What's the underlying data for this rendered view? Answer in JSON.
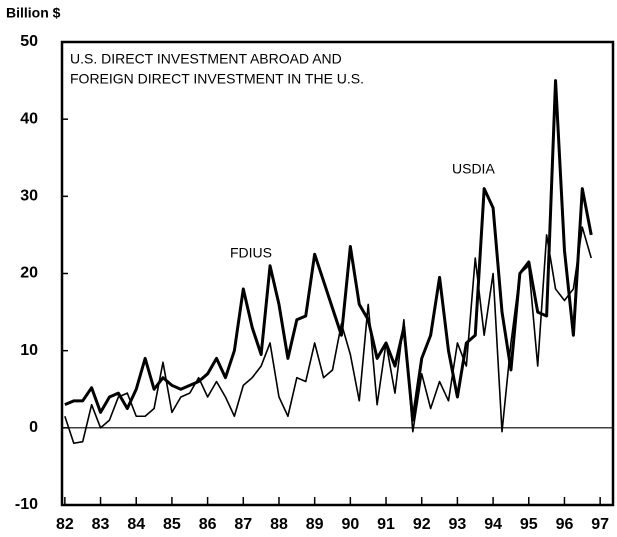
{
  "chart_data": {
    "type": "line",
    "title": [
      "U.S. DIRECT INVESTMENT ABROAD AND",
      "FOREIGN DIRECT INVESTMENT IN THE U.S."
    ],
    "y_label": "Billion $",
    "annotations": [
      "FDIUS",
      "USDIA"
    ],
    "x": [
      1982,
      1982.25,
      1982.5,
      1982.75,
      1983,
      1983.25,
      1983.5,
      1983.75,
      1984,
      1984.25,
      1984.5,
      1984.75,
      1985,
      1985.25,
      1985.5,
      1985.75,
      1986,
      1986.25,
      1986.5,
      1986.75,
      1987,
      1987.25,
      1987.5,
      1987.75,
      1988,
      1988.25,
      1988.5,
      1988.75,
      1989,
      1989.25,
      1989.5,
      1989.75,
      1990,
      1990.25,
      1990.5,
      1990.75,
      1991,
      1991.25,
      1991.5,
      1991.75,
      1992,
      1992.25,
      1992.5,
      1992.75,
      1993,
      1993.25,
      1993.5,
      1993.75,
      1994,
      1994.25,
      1994.5,
      1994.75,
      1995,
      1995.25,
      1995.5,
      1995.75,
      1996,
      1996.25,
      1996.5,
      1996.75
    ],
    "series": [
      {
        "name": "FDIUS",
        "color": "#000000",
        "width": 3,
        "values": [
          3,
          3.5,
          3.5,
          5.2,
          2,
          4,
          4.5,
          2.5,
          5,
          9,
          5,
          6.5,
          5.5,
          5,
          5.5,
          6,
          7,
          9,
          6.5,
          10,
          18,
          13,
          9.5,
          21,
          16,
          9,
          14,
          14.5,
          22.5,
          19,
          15.5,
          12,
          23.5,
          16,
          14,
          9,
          11,
          8,
          13,
          1,
          9,
          12,
          19.5,
          10,
          4,
          11,
          12,
          31,
          28.5,
          15,
          7.5,
          20,
          21.5,
          15,
          14.5,
          45,
          23,
          12,
          31,
          25
        ]
      },
      {
        "name": "USDIA",
        "color": "#000000",
        "width": 1.6,
        "values": [
          1.5,
          -2,
          -1.8,
          3,
          0,
          1,
          4,
          4.5,
          1.5,
          1.5,
          2.5,
          8.5,
          2,
          4,
          4.5,
          6.5,
          4,
          6,
          4,
          1.5,
          5.5,
          6.5,
          8,
          11,
          4,
          1.5,
          6.5,
          6,
          11,
          6.5,
          7.5,
          13.5,
          9.5,
          3.5,
          16,
          3,
          11,
          4.5,
          14,
          -0.5,
          7,
          2.5,
          6,
          3.5,
          11,
          8,
          22,
          12,
          20,
          -0.5,
          11,
          20,
          21,
          8,
          25,
          18,
          16.5,
          18,
          26,
          22
        ]
      }
    ],
    "xlim": [
      1981.92,
      1997.36
    ],
    "xticks": [
      {
        "value": 1982,
        "label": "82"
      },
      {
        "value": 1983,
        "label": "83"
      },
      {
        "value": 1984,
        "label": "84"
      },
      {
        "value": 1985,
        "label": "85"
      },
      {
        "value": 1986,
        "label": "86"
      },
      {
        "value": 1987,
        "label": "87"
      },
      {
        "value": 1988,
        "label": "88"
      },
      {
        "value": 1989,
        "label": "89"
      },
      {
        "value": 1990,
        "label": "90"
      },
      {
        "value": 1991,
        "label": "91"
      },
      {
        "value": 1992,
        "label": "92"
      },
      {
        "value": 1993,
        "label": "93"
      },
      {
        "value": 1994,
        "label": "94"
      },
      {
        "value": 1995,
        "label": "95"
      },
      {
        "value": 1996,
        "label": "96"
      },
      {
        "value": 1997,
        "label": "97"
      }
    ],
    "ylim": [
      -10,
      50
    ],
    "yticks": [
      -10,
      0,
      10,
      20,
      30,
      40,
      50
    ],
    "zero_line": true
  }
}
